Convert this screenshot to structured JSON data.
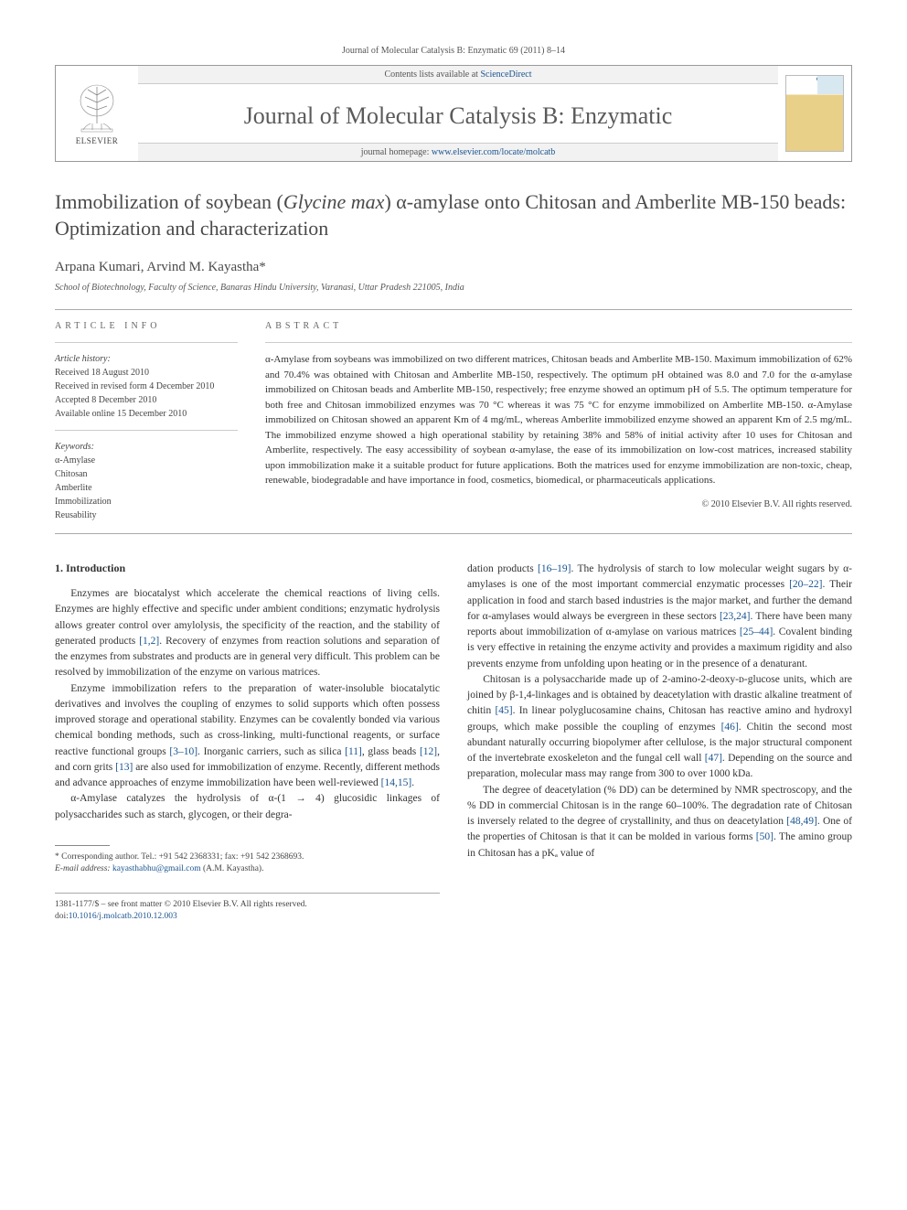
{
  "top_citation": {
    "prefix": "Journal of Molecular Catalysis B: Enzymatic 69 (2011) 8–14"
  },
  "header": {
    "contents_prefix": "Contents lists available at ",
    "contents_link": "ScienceDirect",
    "journal_name": "Journal of Molecular Catalysis B: Enzymatic",
    "homepage_prefix": "journal homepage: ",
    "homepage_url": "www.elsevier.com/locate/molcatb",
    "elsevier": "ELSEVIER"
  },
  "title_plain": "Immobilization of soybean (Glycine max) α-amylase onto Chitosan and Amberlite MB-150 beads: Optimization and characterization",
  "title_html": "Immobilization of soybean (<em>Glycine max</em>) α-amylase onto Chitosan and Amberlite MB-150 beads: Optimization and characterization",
  "authors": "Arpana Kumari, Arvind M. Kayastha*",
  "affiliation": "School of Biotechnology, Faculty of Science, Banaras Hindu University, Varanasi, Uttar Pradesh 221005, India",
  "info": {
    "label": "ARTICLE INFO",
    "history_heading": "Article history:",
    "history": [
      "Received 18 August 2010",
      "Received in revised form 4 December 2010",
      "Accepted 8 December 2010",
      "Available online 15 December 2010"
    ],
    "keywords_heading": "Keywords:",
    "keywords": [
      "α-Amylase",
      "Chitosan",
      "Amberlite",
      "Immobilization",
      "Reusability"
    ]
  },
  "abstract": {
    "label": "ABSTRACT",
    "text": "α-Amylase from soybeans was immobilized on two different matrices, Chitosan beads and Amberlite MB-150. Maximum immobilization of 62% and 70.4% was obtained with Chitosan and Amberlite MB-150, respectively. The optimum pH obtained was 8.0 and 7.0 for the α-amylase immobilized on Chitosan beads and Amberlite MB-150, respectively; free enzyme showed an optimum pH of 5.5. The optimum temperature for both free and Chitosan immobilized enzymes was 70 °C whereas it was 75 °C for enzyme immobilized on Amberlite MB-150. α-Amylase immobilized on Chitosan showed an apparent Km of 4 mg/mL, whereas Amberlite immobilized enzyme showed an apparent Km of 2.5 mg/mL. The immobilized enzyme showed a high operational stability by retaining 38% and 58% of initial activity after 10 uses for Chitosan and Amberlite, respectively. The easy accessibility of soybean α-amylase, the ease of its immobilization on low-cost matrices, increased stability upon immobilization make it a suitable product for future applications. Both the matrices used for enzyme immobilization are non-toxic, cheap, renewable, biodegradable and have importance in food, cosmetics, biomedical, or pharmaceuticals applications.",
    "copyright": "© 2010 Elsevier B.V. All rights reserved."
  },
  "body": {
    "section_heading": "1. Introduction",
    "left_paras_html": [
      "Enzymes are biocatalyst which accelerate the chemical reactions of living cells. Enzymes are highly effective and specific under ambient conditions; enzymatic hydrolysis allows greater control over amylolysis, the specificity of the reaction, and the stability of generated products <a class='ref-link'>[1,2]</a>. Recovery of enzymes from reaction solutions and separation of the enzymes from substrates and products are in general very difficult. This problem can be resolved by immobilization of the enzyme on various matrices.",
      "Enzyme immobilization refers to the preparation of water-insoluble biocatalytic derivatives and involves the coupling of enzymes to solid supports which often possess improved storage and operational stability. Enzymes can be covalently bonded via various chemical bonding methods, such as cross-linking, multi-functional reagents, or surface reactive functional groups <a class='ref-link'>[3–10]</a>. Inorganic carriers, such as silica <a class='ref-link'>[11]</a>, glass beads <a class='ref-link'>[12]</a>, and corn grits <a class='ref-link'>[13]</a> are also used for immobilization of enzyme. Recently, different methods and advance approaches of enzyme immobilization have been well-reviewed <a class='ref-link'>[14,15]</a>.",
      "α-Amylase catalyzes the hydrolysis of α-(1 → 4) glucosidic linkages of polysaccharides such as starch, glycogen, or their degra-"
    ],
    "right_paras_html": [
      "dation products <a class='ref-link'>[16–19]</a>. The hydrolysis of starch to low molecular weight sugars by α-amylases is one of the most important commercial enzymatic processes <a class='ref-link'>[20–22]</a>. Their application in food and starch based industries is the major market, and further the demand for α-amylases would always be evergreen in these sectors <a class='ref-link'>[23,24]</a>. There have been many reports about immobilization of α-amylase on various matrices <a class='ref-link'>[25–44]</a>. Covalent binding is very effective in retaining the enzyme activity and provides a maximum rigidity and also prevents enzyme from unfolding upon heating or in the presence of a denaturant.",
      "Chitosan is a polysaccharide made up of 2-amino-2-deoxy-ᴅ-glucose units, which are joined by β-1,4-linkages and is obtained by deacetylation with drastic alkaline treatment of chitin <a class='ref-link'>[45]</a>. In linear polyglucosamine chains, Chitosan has reactive amino and hydroxyl groups, which make possible the coupling of enzymes <a class='ref-link'>[46]</a>. Chitin the second most abundant naturally occurring biopolymer after cellulose, is the major structural component of the invertebrate exoskeleton and the fungal cell wall <a class='ref-link'>[47]</a>. Depending on the source and preparation, molecular mass may range from 300 to over 1000 kDa.",
      "The degree of deacetylation (% DD) can be determined by NMR spectroscopy, and the % DD in commercial Chitosan is in the range 60–100%. The degradation rate of Chitosan is inversely related to the degree of crystallinity, and thus on deacetylation <a class='ref-link'>[48,49]</a>. One of the properties of Chitosan is that it can be molded in various forms <a class='ref-link'>[50]</a>. The amino group in Chitosan has a pKₐ value of"
    ]
  },
  "footnote": {
    "corr_label": "* Corresponding author. Tel.: +91 542 2368331; fax: +91 542 2368693.",
    "email_label": "E-mail address: ",
    "email": "kayasthabhu@gmail.com",
    "email_name": " (A.M. Kayastha)."
  },
  "bottom": {
    "issn_line": "1381-1177/$ – see front matter © 2010 Elsevier B.V. All rights reserved.",
    "doi_prefix": "doi:",
    "doi": "10.1016/j.molcatb.2010.12.003"
  },
  "colors": {
    "link": "#1a5490",
    "text": "#333333",
    "muted": "#555555",
    "rule": "#aaaaaa"
  }
}
